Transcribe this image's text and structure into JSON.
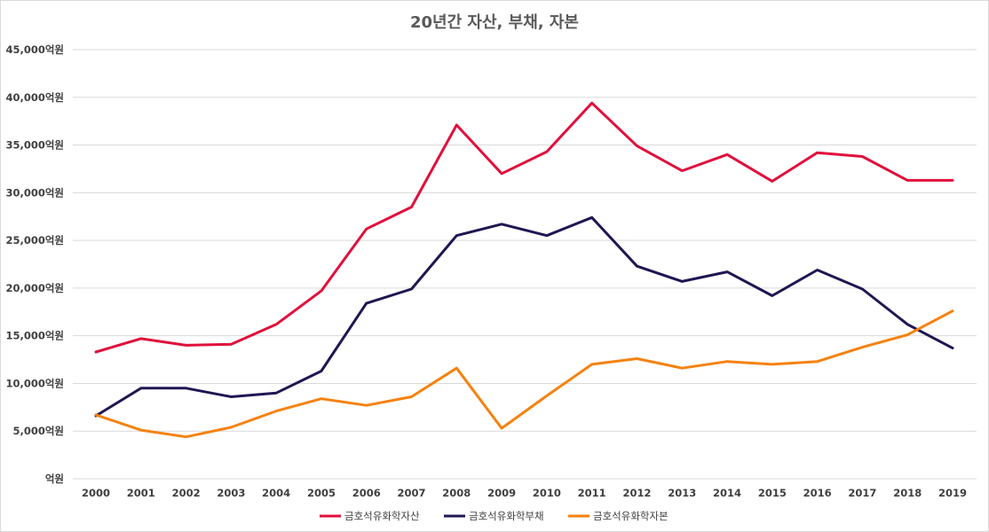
{
  "chart_data": {
    "type": "line",
    "title": "20년간 자산, 부채, 자본",
    "xlabel": "",
    "ylabel": "",
    "categories": [
      "2000",
      "2001",
      "2002",
      "2003",
      "2004",
      "2005",
      "2006",
      "2007",
      "2008",
      "2009",
      "2010",
      "2011",
      "2012",
      "2013",
      "2014",
      "2015",
      "2016",
      "2017",
      "2018",
      "2019"
    ],
    "ylim": [
      0,
      45000
    ],
    "yticks": [
      0,
      5000,
      10000,
      15000,
      20000,
      25000,
      30000,
      35000,
      40000,
      45000
    ],
    "ytick_labels": [
      "억원",
      "5,000억원",
      "10,000억원",
      "15,000억원",
      "20,000억원",
      "25,000억원",
      "30,000억원",
      "35,000억원",
      "40,000억원",
      "45,000억원"
    ],
    "grid": true,
    "legend_position": "bottom",
    "series": [
      {
        "name": "금호석유화학자산",
        "color": "#e0103c",
        "values": [
          13300,
          14700,
          14000,
          14100,
          16200,
          19700,
          26200,
          28500,
          37100,
          32000,
          34300,
          39400,
          34900,
          32300,
          34000,
          31200,
          34200,
          33800,
          31300,
          31300
        ]
      },
      {
        "name": "금호석유화학부채",
        "color": "#1f1752",
        "values": [
          6600,
          9500,
          9500,
          8600,
          9000,
          11300,
          18400,
          19900,
          25500,
          26700,
          25500,
          27400,
          22300,
          20700,
          21700,
          19200,
          21900,
          19900,
          16200,
          13700
        ]
      },
      {
        "name": "금호석유화학자본",
        "color": "#f5820f",
        "values": [
          6700,
          5100,
          4400,
          5400,
          7100,
          8400,
          7700,
          8600,
          11600,
          5300,
          8700,
          12000,
          12600,
          11600,
          12300,
          12000,
          12300,
          13800,
          15100,
          17600
        ]
      }
    ]
  }
}
